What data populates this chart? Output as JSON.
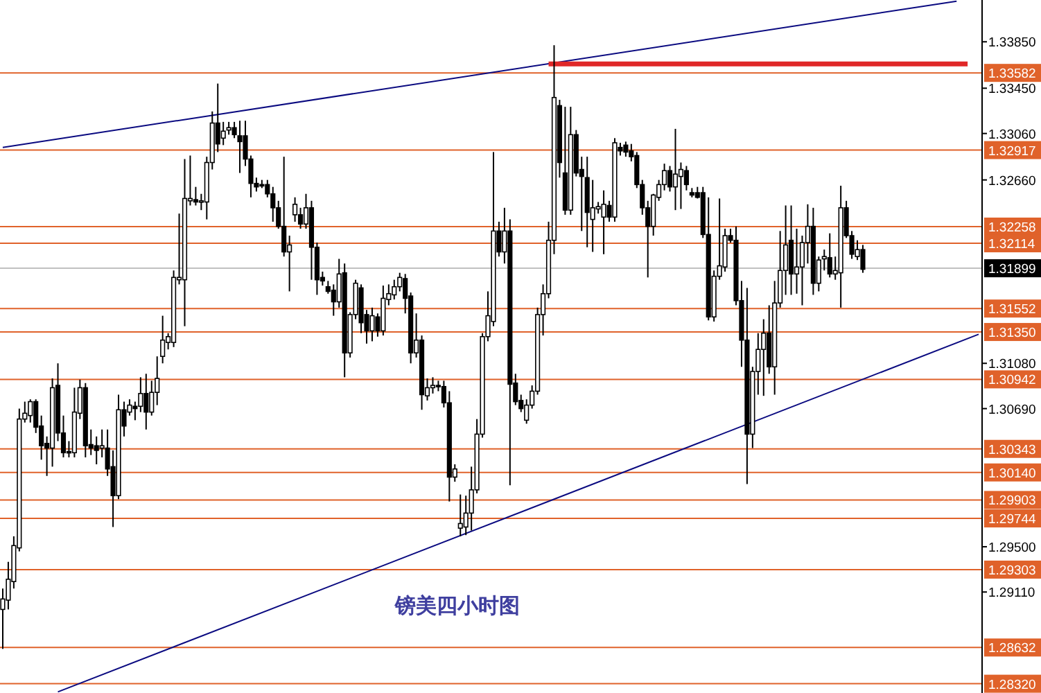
{
  "chart_data": {
    "type": "candlestick",
    "categories": [
      null,
      null,
      null,
      null,
      null,
      null,
      null,
      null,
      null,
      null,
      null,
      null,
      null,
      null,
      null,
      null,
      null,
      null,
      null,
      null,
      null,
      null,
      null,
      null,
      null,
      null,
      null,
      null,
      null,
      null,
      null,
      null,
      null,
      null,
      null,
      null,
      null,
      null,
      null,
      null,
      null,
      null,
      null,
      null,
      null,
      null,
      null,
      null,
      null,
      null,
      null,
      null,
      null,
      null,
      null,
      null,
      null,
      null,
      null,
      null,
      null,
      null,
      null,
      null,
      null,
      null,
      null,
      null,
      null,
      null,
      null,
      null,
      null,
      null,
      null,
      null,
      null,
      null,
      null,
      null,
      null,
      null,
      null,
      null,
      null,
      null,
      null,
      null,
      null,
      null,
      null,
      null,
      null,
      null,
      null,
      null,
      null,
      null,
      null,
      null,
      null,
      null,
      null,
      null,
      null,
      null,
      null,
      null,
      null,
      null,
      null,
      null,
      null,
      null,
      null,
      null,
      null,
      null,
      null,
      null,
      null,
      null,
      null,
      null,
      null,
      null,
      null,
      null,
      null,
      null,
      null,
      null,
      null,
      null,
      null,
      null,
      null,
      null,
      null,
      null,
      null,
      null,
      null,
      null,
      null,
      null,
      null,
      null,
      null,
      null,
      null,
      null,
      null,
      null,
      null,
      null,
      null,
      null,
      null,
      null,
      null,
      null,
      null,
      null,
      null,
      null,
      null,
      null,
      null,
      null,
      null,
      null,
      null,
      null,
      null,
      null,
      null,
      null
    ],
    "ohlc": [
      [
        1.2896,
        1.2914,
        1.2862,
        1.2905
      ],
      [
        1.2904,
        1.2937,
        1.2896,
        1.2922
      ],
      [
        1.292,
        1.2959,
        1.2914,
        1.2951
      ],
      [
        1.2949,
        1.3069,
        1.2946,
        1.306
      ],
      [
        1.306,
        1.3075,
        1.3057,
        1.3065
      ],
      [
        1.3063,
        1.3077,
        1.3057,
        1.3075
      ],
      [
        1.3075,
        1.3077,
        1.3048,
        1.3053
      ],
      [
        1.3054,
        1.3063,
        1.3025,
        1.3037
      ],
      [
        1.3039,
        1.3045,
        1.3011,
        1.3035
      ],
      [
        1.3035,
        1.3095,
        1.3019,
        1.3087
      ],
      [
        1.3089,
        1.3108,
        1.3041,
        1.3048
      ],
      [
        1.3048,
        1.3063,
        1.3027,
        1.3031
      ],
      [
        1.3032,
        1.3041,
        1.3027,
        1.3031
      ],
      [
        1.3031,
        1.3087,
        1.3027,
        1.3066
      ],
      [
        1.3065,
        1.3094,
        1.306,
        1.3087
      ],
      [
        1.3087,
        1.3091,
        1.3027,
        1.3037
      ],
      [
        1.3038,
        1.3051,
        1.3029,
        1.3035
      ],
      [
        1.3037,
        1.3045,
        1.3021,
        1.3033
      ],
      [
        1.3035,
        1.3051,
        1.3027,
        1.3037
      ],
      [
        1.3035,
        1.3051,
        1.3011,
        1.3017
      ],
      [
        1.3019,
        1.3033,
        1.2967,
        1.2994
      ],
      [
        1.2994,
        1.3081,
        1.2991,
        1.3068
      ],
      [
        1.3068,
        1.3075,
        1.3045,
        1.3054
      ],
      [
        1.3066,
        1.3077,
        1.3063,
        1.3072
      ],
      [
        1.3071,
        1.3075,
        1.3059,
        1.3069
      ],
      [
        1.3071,
        1.3096,
        1.3066,
        1.3082
      ],
      [
        1.3082,
        1.3099,
        1.3051,
        1.3066
      ],
      [
        1.3066,
        1.3093,
        1.3063,
        1.3083
      ],
      [
        1.3083,
        1.3114,
        1.3072,
        1.3095
      ],
      [
        1.3114,
        1.3149,
        1.3108,
        1.3128
      ],
      [
        1.3126,
        1.3134,
        1.312,
        1.3131
      ],
      [
        1.3126,
        1.3188,
        1.3122,
        1.3182
      ],
      [
        1.318,
        1.3237,
        1.3176,
        1.3182
      ],
      [
        1.318,
        1.3284,
        1.314,
        1.325
      ],
      [
        1.3248,
        1.3287,
        1.3244,
        1.325
      ],
      [
        1.3249,
        1.326,
        1.3244,
        1.3247
      ],
      [
        1.3247,
        1.3254,
        1.324,
        1.3248
      ],
      [
        1.3247,
        1.3286,
        1.3232,
        1.3281
      ],
      [
        1.3281,
        1.3325,
        1.3275,
        1.3315
      ],
      [
        1.3315,
        1.3349,
        1.329,
        1.3297
      ],
      [
        1.3302,
        1.3316,
        1.3296,
        1.3308
      ],
      [
        1.3309,
        1.3316,
        1.3305,
        1.3311
      ],
      [
        1.3311,
        1.3316,
        1.3302,
        1.3305
      ],
      [
        1.3304,
        1.3317,
        1.3272,
        1.3299
      ],
      [
        1.3304,
        1.3317,
        1.3278,
        1.3284
      ],
      [
        1.3284,
        1.3287,
        1.3251,
        1.3263
      ],
      [
        1.3263,
        1.3268,
        1.3256,
        1.326
      ],
      [
        1.3262,
        1.3266,
        1.3259,
        1.3261
      ],
      [
        1.3262,
        1.3266,
        1.3251,
        1.3254
      ],
      [
        1.3254,
        1.326,
        1.323,
        1.3242
      ],
      [
        1.3242,
        1.3248,
        1.3224,
        1.3226
      ],
      [
        1.3226,
        1.3286,
        1.32,
        1.3204
      ],
      [
        1.3204,
        1.3218,
        1.317,
        1.321
      ],
      [
        1.3236,
        1.3251,
        1.323,
        1.3245
      ],
      [
        1.3236,
        1.3242,
        1.3224,
        1.3228
      ],
      [
        1.3228,
        1.3254,
        1.3224,
        1.3242
      ],
      [
        1.3242,
        1.3248,
        1.318,
        1.3208
      ],
      [
        1.3208,
        1.3212,
        1.3167,
        1.318
      ],
      [
        1.3182,
        1.3187,
        1.3175,
        1.3179
      ],
      [
        1.3174,
        1.3179,
        1.3168,
        1.317
      ],
      [
        1.3171,
        1.3176,
        1.3149,
        1.3161
      ],
      [
        1.3161,
        1.3198,
        1.3156,
        1.3185
      ],
      [
        1.3186,
        1.3194,
        1.3096,
        1.3117
      ],
      [
        1.3117,
        1.3152,
        1.3113,
        1.315
      ],
      [
        1.315,
        1.318,
        1.3146,
        1.3177
      ],
      [
        1.3173,
        1.3176,
        1.3134,
        1.3143
      ],
      [
        1.315,
        1.3154,
        1.3125,
        1.3136
      ],
      [
        1.3136,
        1.3156,
        1.3127,
        1.3149
      ],
      [
        1.3148,
        1.3151,
        1.3131,
        1.3136
      ],
      [
        1.3136,
        1.3175,
        1.3132,
        1.3164
      ],
      [
        1.3163,
        1.3176,
        1.3158,
        1.3168
      ],
      [
        1.3167,
        1.318,
        1.3163,
        1.3174
      ],
      [
        1.3174,
        1.3186,
        1.317,
        1.3182
      ],
      [
        1.3181,
        1.3185,
        1.3151,
        1.3164
      ],
      [
        1.3166,
        1.3169,
        1.3108,
        1.3117
      ],
      [
        1.3117,
        1.3151,
        1.3113,
        1.3128
      ],
      [
        1.3128,
        1.3132,
        1.3068,
        1.3081
      ],
      [
        1.308,
        1.3095,
        1.3076,
        1.3087
      ],
      [
        1.3087,
        1.3096,
        1.3082,
        1.3089
      ],
      [
        1.3089,
        1.3093,
        1.3084,
        1.3088
      ],
      [
        1.3088,
        1.3093,
        1.307,
        1.3074
      ],
      [
        1.3074,
        1.3084,
        1.2989,
        1.301
      ],
      [
        1.301,
        1.3021,
        1.3006,
        1.3017
      ],
      [
        1.2966,
        1.2995,
        1.2959,
        1.297
      ],
      [
        1.2967,
        1.2994,
        1.296,
        1.2979
      ],
      [
        1.2979,
        1.3019,
        1.2964,
        1.2999
      ],
      [
        1.2999,
        1.306,
        1.2996,
        1.3047
      ],
      [
        1.3047,
        1.3134,
        1.3044,
        1.3131
      ],
      [
        1.3131,
        1.317,
        1.3127,
        1.3149
      ],
      [
        1.3144,
        1.329,
        1.314,
        1.3222
      ],
      [
        1.3222,
        1.323,
        1.32,
        1.3204
      ],
      [
        1.3204,
        1.3242,
        1.3194,
        1.3222
      ],
      [
        1.3222,
        1.3232,
        1.3003,
        1.309
      ],
      [
        1.3091,
        1.3099,
        1.3072,
        1.3075
      ],
      [
        1.3076,
        1.3081,
        1.3066,
        1.3069
      ],
      [
        1.3059,
        1.3077,
        1.3056,
        1.3072
      ],
      [
        1.3072,
        1.3089,
        1.3069,
        1.3084
      ],
      [
        1.3084,
        1.3156,
        1.3081,
        1.315
      ],
      [
        1.315,
        1.3176,
        1.3132,
        1.3168
      ],
      [
        1.3168,
        1.323,
        1.3164,
        1.3214
      ],
      [
        1.3214,
        1.3382,
        1.3202,
        1.3337
      ],
      [
        1.333,
        1.3335,
        1.3268,
        1.3281
      ],
      [
        1.3272,
        1.3329,
        1.3236,
        1.324
      ],
      [
        1.324,
        1.3329,
        1.3236,
        1.3305
      ],
      [
        1.3305,
        1.3309,
        1.3269,
        1.3272
      ],
      [
        1.3275,
        1.3286,
        1.3222,
        1.3269
      ],
      [
        1.3268,
        1.3286,
        1.3208,
        1.3238
      ],
      [
        1.3232,
        1.3266,
        1.3204,
        1.3242
      ],
      [
        1.3241,
        1.3247,
        1.3237,
        1.3243
      ],
      [
        1.3234,
        1.3257,
        1.3202,
        1.3245
      ],
      [
        1.3244,
        1.3248,
        1.323,
        1.3234
      ],
      [
        1.3234,
        1.3302,
        1.323,
        1.3298
      ],
      [
        1.3294,
        1.3298,
        1.3287,
        1.3291
      ],
      [
        1.3296,
        1.3299,
        1.3286,
        1.329
      ],
      [
        1.3291,
        1.3297,
        1.3282,
        1.3286
      ],
      [
        1.3287,
        1.329,
        1.3259,
        1.3262
      ],
      [
        1.3262,
        1.3266,
        1.3236,
        1.3242
      ],
      [
        1.3242,
        1.3248,
        1.3182,
        1.3226
      ],
      [
        1.3226,
        1.3254,
        1.3218,
        1.3253
      ],
      [
        1.3251,
        1.3266,
        1.3248,
        1.3262
      ],
      [
        1.3262,
        1.328,
        1.3257,
        1.3274
      ],
      [
        1.3274,
        1.3278,
        1.3256,
        1.326
      ],
      [
        1.326,
        1.331,
        1.324,
        1.3271
      ],
      [
        1.3269,
        1.3281,
        1.3241,
        1.3275
      ],
      [
        1.3274,
        1.3278,
        1.3257,
        1.3262
      ],
      [
        1.3255,
        1.3259,
        1.3251,
        1.3253
      ],
      [
        1.3255,
        1.326,
        1.325,
        1.3251
      ],
      [
        1.3255,
        1.326,
        1.3216,
        1.3219
      ],
      [
        1.3219,
        1.3251,
        1.3145,
        1.3148
      ],
      [
        1.3148,
        1.3188,
        1.3144,
        1.3183
      ],
      [
        1.3183,
        1.325,
        1.318,
        1.3192
      ],
      [
        1.3191,
        1.3224,
        1.3187,
        1.3218
      ],
      [
        1.3218,
        1.3224,
        1.3212,
        1.3214
      ],
      [
        1.3214,
        1.3226,
        1.3158,
        1.3162
      ],
      [
        1.3162,
        1.3179,
        1.3105,
        1.3128
      ],
      [
        1.3128,
        1.3173,
        1.3004,
        1.3047
      ],
      [
        1.3047,
        1.3105,
        1.3035,
        1.3101
      ],
      [
        1.3101,
        1.3134,
        1.3081,
        1.312
      ],
      [
        1.312,
        1.3146,
        1.308,
        1.3134
      ],
      [
        1.3134,
        1.3158,
        1.3099,
        1.3105
      ],
      [
        1.3105,
        1.3179,
        1.3081,
        1.316
      ],
      [
        1.316,
        1.3222,
        1.3156,
        1.3188
      ],
      [
        1.3188,
        1.3244,
        1.3167,
        1.321
      ],
      [
        1.3214,
        1.3244,
        1.3167,
        1.3185
      ],
      [
        1.3185,
        1.3224,
        1.3168,
        1.3191
      ],
      [
        1.3191,
        1.3218,
        1.3158,
        1.3212
      ],
      [
        1.3212,
        1.3245,
        1.3194,
        1.3226
      ],
      [
        1.3226,
        1.3242,
        1.3167,
        1.3177
      ],
      [
        1.3177,
        1.32,
        1.317,
        1.3197
      ],
      [
        1.3198,
        1.3206,
        1.3188,
        1.32
      ],
      [
        1.3199,
        1.322,
        1.3182,
        1.3185
      ],
      [
        1.3185,
        1.32,
        1.318,
        1.3188
      ],
      [
        1.3186,
        1.3261,
        1.3156,
        1.3242
      ],
      [
        1.3242,
        1.3248,
        1.3216,
        1.3218
      ],
      [
        1.3218,
        1.3222,
        1.3198,
        1.3202
      ],
      [
        1.32,
        1.3214,
        1.3197,
        1.3206
      ],
      [
        1.3206,
        1.321,
        1.3186,
        1.3189
      ],
      null,
      null,
      null,
      null,
      null,
      null,
      null,
      null,
      null,
      null,
      null,
      null,
      null,
      null,
      null,
      null,
      null,
      null,
      null,
      null,
      null
    ],
    "series": [
      {
        "type": "line",
        "color": "#0a0a80",
        "values": [
          1.3294,
          null,
          null,
          null,
          null,
          null,
          null,
          null,
          null,
          null,
          null,
          null,
          null,
          null,
          null,
          null,
          null,
          null,
          null,
          null,
          null,
          null,
          null,
          null,
          null,
          null,
          null,
          null,
          null,
          null,
          null,
          null,
          null,
          null,
          null,
          null,
          null,
          null,
          null,
          null,
          null,
          null,
          null,
          null,
          null,
          null,
          null,
          null,
          null,
          null,
          null,
          null,
          null,
          null,
          null,
          null,
          null,
          null,
          null,
          null,
          null,
          null,
          null,
          null,
          null,
          null,
          null,
          null,
          null,
          null,
          null,
          null,
          null,
          null,
          null,
          null,
          null,
          null,
          null,
          null,
          null,
          null,
          null,
          null,
          null,
          null,
          null,
          null,
          null,
          null,
          null,
          null,
          null,
          null,
          null,
          null,
          null,
          null,
          null,
          null,
          null,
          null,
          null,
          null,
          null,
          null,
          null,
          null,
          null,
          null,
          null,
          null,
          null,
          null,
          null,
          null,
          null,
          null,
          null,
          null,
          null,
          null,
          null,
          null,
          null,
          null,
          null,
          null,
          null,
          null,
          null,
          null,
          null,
          null,
          null,
          null,
          null,
          null,
          null,
          null,
          null,
          null,
          null,
          null,
          null,
          null,
          null,
          null,
          null,
          null,
          null,
          null,
          null,
          null,
          null,
          null,
          null,
          null,
          null,
          null,
          null,
          null,
          null,
          null,
          null,
          null,
          null,
          null,
          null,
          null,
          null,
          null,
          null,
          1.342,
          null,
          null,
          null,
          null
        ]
      },
      {
        "type": "line",
        "color": "#0a0a80",
        "values": [
          null,
          null,
          null,
          null,
          null,
          null,
          null,
          null,
          null,
          null,
          1.2825,
          null,
          null,
          null,
          null,
          null,
          null,
          null,
          null,
          null,
          null,
          null,
          null,
          null,
          null,
          null,
          null,
          null,
          null,
          null,
          null,
          null,
          null,
          null,
          null,
          null,
          null,
          null,
          null,
          null,
          null,
          null,
          null,
          null,
          null,
          null,
          null,
          null,
          null,
          null,
          null,
          null,
          null,
          null,
          null,
          null,
          null,
          null,
          null,
          null,
          null,
          null,
          null,
          null,
          null,
          null,
          null,
          null,
          null,
          null,
          null,
          null,
          null,
          null,
          null,
          null,
          null,
          null,
          null,
          null,
          null,
          null,
          null,
          null,
          null,
          null,
          null,
          null,
          null,
          null,
          null,
          null,
          null,
          null,
          null,
          null,
          null,
          null,
          null,
          null,
          null,
          null,
          null,
          null,
          null,
          null,
          null,
          null,
          null,
          null,
          null,
          null,
          null,
          null,
          null,
          null,
          null,
          null,
          null,
          null,
          null,
          null,
          null,
          null,
          null,
          null,
          null,
          null,
          null,
          null,
          null,
          null,
          null,
          null,
          null,
          null,
          null,
          null,
          null,
          null,
          null,
          null,
          null,
          null,
          null,
          null,
          null,
          null,
          null,
          null,
          null,
          null,
          null,
          null,
          null,
          null,
          null,
          null,
          null,
          null,
          null,
          null,
          null,
          null,
          null,
          null,
          null,
          null,
          null,
          null,
          null,
          null,
          null,
          null,
          null,
          null,
          null,
          1.3133
        ]
      },
      {
        "type": "line",
        "color": "#e02828",
        "values": [
          null,
          null,
          null,
          null,
          null,
          null,
          null,
          null,
          null,
          null,
          null,
          null,
          null,
          null,
          null,
          null,
          null,
          null,
          null,
          null,
          null,
          null,
          null,
          null,
          null,
          null,
          null,
          null,
          null,
          null,
          null,
          null,
          null,
          null,
          null,
          null,
          null,
          null,
          null,
          null,
          null,
          null,
          null,
          null,
          null,
          null,
          null,
          null,
          null,
          null,
          null,
          null,
          null,
          null,
          null,
          null,
          null,
          null,
          null,
          null,
          null,
          null,
          null,
          null,
          null,
          null,
          null,
          null,
          null,
          null,
          null,
          null,
          null,
          null,
          null,
          null,
          null,
          null,
          null,
          null,
          null,
          null,
          null,
          null,
          null,
          null,
          null,
          null,
          null,
          null,
          null,
          null,
          null,
          null,
          null,
          null,
          null,
          null,
          null,
          1.3366,
          1.3366,
          1.3366,
          1.3366,
          1.3366,
          1.3366,
          1.3366,
          1.3366,
          1.3366,
          1.3366,
          1.3366,
          1.3366,
          1.3366,
          1.3366,
          1.3366,
          1.3366,
          1.3366,
          1.3366,
          1.3366,
          1.3366,
          1.3366,
          1.3366,
          1.3366,
          1.3366,
          1.3366,
          1.3366,
          1.3366,
          1.3366,
          1.3366,
          1.3366,
          1.3366,
          1.3366,
          1.3366,
          1.3366,
          1.3366,
          1.3366,
          1.3366,
          1.3366,
          1.3366,
          1.3366,
          1.3366,
          1.3366,
          1.3366,
          1.3366,
          1.3366,
          1.3366,
          1.3366,
          1.3366,
          1.3366,
          1.3366,
          1.3366,
          1.3366,
          1.3366,
          1.3366,
          1.3366,
          1.3366,
          1.3366,
          1.3366,
          1.3366,
          1.3366,
          1.3366,
          1.3366,
          1.3366,
          1.3366,
          1.3366,
          1.3366,
          1.3366,
          1.3366,
          1.3366,
          1.3366,
          1.3366,
          1.3366,
          1.3366,
          1.3366,
          1.3366,
          1.3366,
          1.3366,
          null,
          null
        ]
      }
    ],
    "ylim": [
      1.2824,
      1.3421
    ],
    "yticks": [
      {
        "value": 1.3385,
        "label": "1.33850"
      },
      {
        "value": 1.3345,
        "label": "1.33450"
      },
      {
        "value": 1.3306,
        "label": "1.33060"
      },
      {
        "value": 1.3266,
        "label": "1.32660"
      },
      {
        "value": 1.3108,
        "label": "1.31080"
      },
      {
        "value": 1.3069,
        "label": "1.30690"
      },
      {
        "value": 1.295,
        "label": "1.29500"
      },
      {
        "value": 1.2911,
        "label": "1.29110"
      }
    ],
    "ref_lines": [
      {
        "axis": "y",
        "value": 1.33582,
        "label": "1.33582",
        "color": "#e0622a"
      },
      {
        "axis": "y",
        "value": 1.32917,
        "label": "1.32917",
        "color": "#e0622a"
      },
      {
        "axis": "y",
        "value": 1.32258,
        "label": "1.32258",
        "color": "#e0622a"
      },
      {
        "axis": "y",
        "value": 1.32114,
        "label": "1.32114",
        "color": "#e0622a"
      },
      {
        "axis": "y",
        "value": 1.31899,
        "label": "1.31899",
        "color": "#c0c0c0"
      },
      {
        "axis": "y",
        "value": 1.31552,
        "label": "1.31552",
        "color": "#e0622a"
      },
      {
        "axis": "y",
        "value": 1.3135,
        "label": "1.31350",
        "color": "#e0622a"
      },
      {
        "axis": "y",
        "value": 1.30942,
        "label": "1.30942",
        "color": "#e0622a"
      },
      {
        "axis": "y",
        "value": 1.30343,
        "label": "1.30343",
        "color": "#e0622a"
      },
      {
        "axis": "y",
        "value": 1.3014,
        "label": "1.30140",
        "color": "#e0622a"
      },
      {
        "axis": "y",
        "value": 1.29903,
        "label": "1.29903",
        "color": "#e0622a"
      },
      {
        "axis": "y",
        "value": 1.29744,
        "label": "1.29744",
        "color": "#e0622a"
      },
      {
        "axis": "y",
        "value": 1.29303,
        "label": "1.29303",
        "color": "#e0622a"
      },
      {
        "axis": "y",
        "value": 1.28632,
        "label": "1.28632",
        "color": "#e0622a"
      },
      {
        "axis": "y",
        "value": 1.2832,
        "label": "1.28320",
        "color": "#e0622a"
      }
    ],
    "annotations": [
      "镑美四小时图"
    ]
  }
}
